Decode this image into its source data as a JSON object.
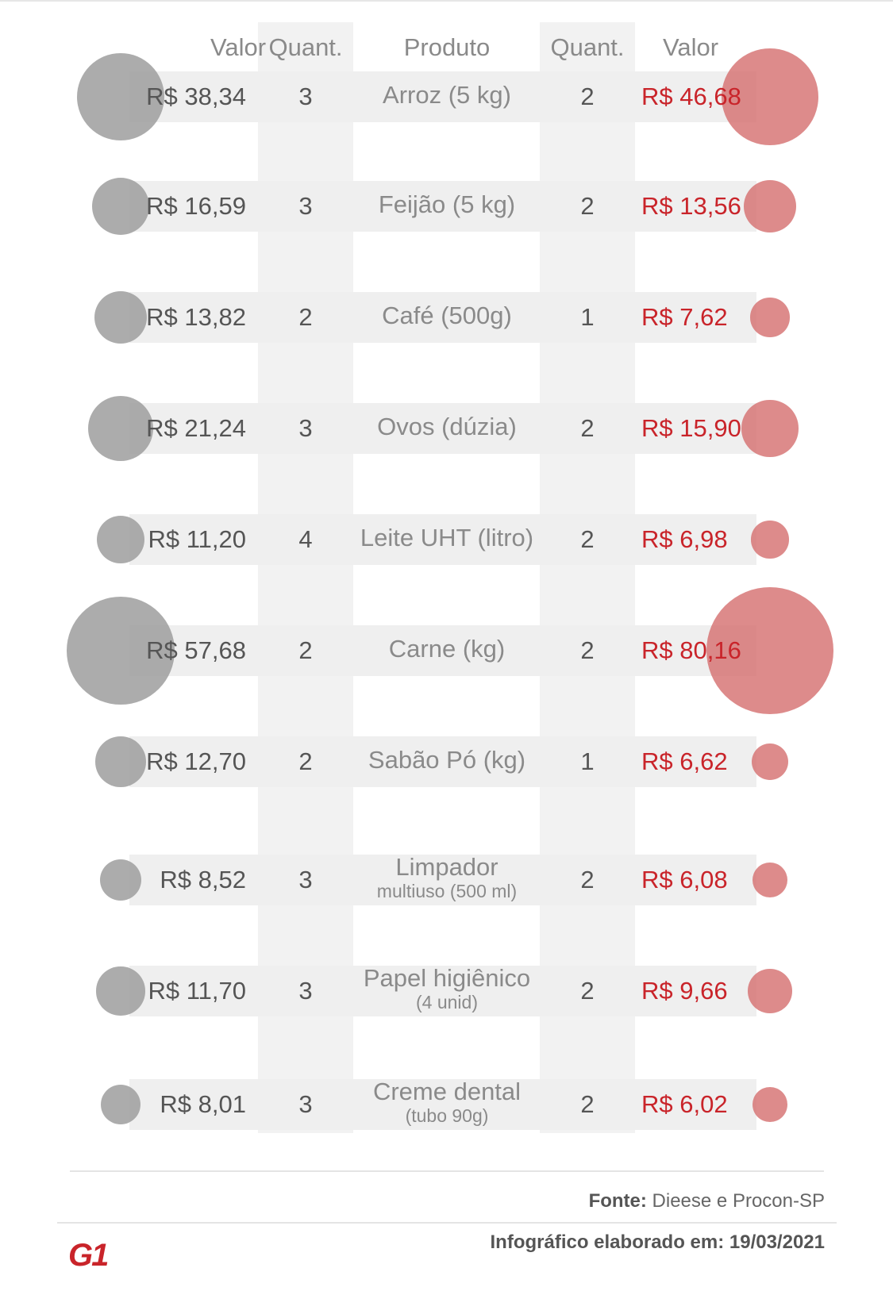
{
  "chart_data": {
    "type": "table",
    "columns": [
      "Valor",
      "Quant.",
      "Produto",
      "Quant.",
      "Valor"
    ],
    "rows": [
      {
        "valor_left": "R$ 38,34",
        "quant_left": "3",
        "produto": "Arroz (5 kg)",
        "produto_sub": "",
        "quant_right": "2",
        "valor_right": "R$ 46,68",
        "left_value": 38.34,
        "right_value": 46.68
      },
      {
        "valor_left": "R$ 16,59",
        "quant_left": "3",
        "produto": "Feijão (5 kg)",
        "produto_sub": "",
        "quant_right": "2",
        "valor_right": "R$ 13,56",
        "left_value": 16.59,
        "right_value": 13.56
      },
      {
        "valor_left": "R$ 13,82",
        "quant_left": "2",
        "produto": "Café (500g)",
        "produto_sub": "",
        "quant_right": "1",
        "valor_right": "R$ 7,62",
        "left_value": 13.82,
        "right_value": 7.62
      },
      {
        "valor_left": "R$ 21,24",
        "quant_left": "3",
        "produto": "Ovos (dúzia)",
        "produto_sub": "",
        "quant_right": "2",
        "valor_right": "R$ 15,90",
        "left_value": 21.24,
        "right_value": 15.9
      },
      {
        "valor_left": "R$ 11,20",
        "quant_left": "4",
        "produto": "Leite UHT (litro)",
        "produto_sub": "",
        "quant_right": "2",
        "valor_right": "R$ 6,98",
        "left_value": 11.2,
        "right_value": 6.98
      },
      {
        "valor_left": "R$ 57,68",
        "quant_left": "2",
        "produto": "Carne (kg)",
        "produto_sub": "",
        "quant_right": "2",
        "valor_right": "R$ 80,16",
        "left_value": 57.68,
        "right_value": 80.16
      },
      {
        "valor_left": "R$ 12,70",
        "quant_left": "2",
        "produto": "Sabão Pó (kg)",
        "produto_sub": "",
        "quant_right": "1",
        "valor_right": "R$ 6,62",
        "left_value": 12.7,
        "right_value": 6.62
      },
      {
        "valor_left": "R$ 8,52",
        "quant_left": "3",
        "produto": "Limpador",
        "produto_sub": "multiuso (500 ml)",
        "quant_right": "2",
        "valor_right": "R$ 6,08",
        "left_value": 8.52,
        "right_value": 6.08
      },
      {
        "valor_left": "R$ 11,70",
        "quant_left": "3",
        "produto": "Papel higiênico",
        "produto_sub": "(4 unid)",
        "quant_right": "2",
        "valor_right": "R$ 9,66",
        "left_value": 11.7,
        "right_value": 9.66
      },
      {
        "valor_left": "R$ 8,01",
        "quant_left": "3",
        "produto": "Creme dental",
        "produto_sub": "(tubo 90g)",
        "quant_right": "2",
        "valor_right": "R$ 6,02",
        "left_value": 8.01,
        "right_value": 6.02
      }
    ],
    "colors": {
      "left": "#a0a0a0",
      "right": "#d46e6e",
      "right_text": "#c9242a"
    }
  },
  "footer": {
    "source_label": "Fonte:",
    "source_text": "Dieese e Procon-SP",
    "credit_label": "Infográfico elaborado em:",
    "credit_date": "19/03/2021",
    "logo": "G1"
  }
}
